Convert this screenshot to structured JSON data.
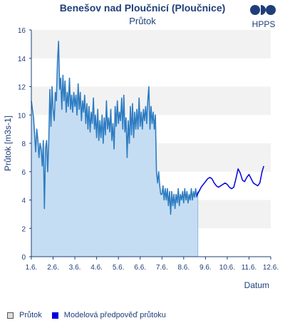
{
  "chart_data": {
    "type": "line",
    "title": "Benešov nad Ploučnicí (Ploučnice)",
    "subtitle": "Průtok",
    "xlabel": "Datum",
    "ylabel": "Průtok [m3s-1]",
    "ylim": [
      0,
      16
    ],
    "yticks": [
      0,
      2,
      4,
      6,
      8,
      10,
      12,
      14,
      16
    ],
    "xlim": [
      0,
      11
    ],
    "xticks": [
      {
        "x": 0,
        "label": "1.6."
      },
      {
        "x": 1,
        "label": "2.6."
      },
      {
        "x": 2,
        "label": "3.6."
      },
      {
        "x": 3,
        "label": "4.6."
      },
      {
        "x": 4,
        "label": "5.6."
      },
      {
        "x": 5,
        "label": "6.6."
      },
      {
        "x": 6,
        "label": "7.6."
      },
      {
        "x": 7,
        "label": "8.6."
      },
      {
        "x": 8,
        "label": "9.6."
      },
      {
        "x": 9,
        "label": "10.6."
      },
      {
        "x": 10,
        "label": "11.6."
      },
      {
        "x": 11,
        "label": "12.6."
      }
    ],
    "grid": "horizontal bands",
    "legend_position": "bottom-left",
    "series": [
      {
        "name": "Průtok",
        "color": "#2e7cc1",
        "fill": "#c5ddf3",
        "points": [
          [
            0.0,
            11.0
          ],
          [
            0.05,
            10.4
          ],
          [
            0.1,
            9.8
          ],
          [
            0.15,
            8.6
          ],
          [
            0.2,
            7.4
          ],
          [
            0.25,
            9.0
          ],
          [
            0.3,
            8.2
          ],
          [
            0.35,
            7.0
          ],
          [
            0.4,
            8.0
          ],
          [
            0.45,
            7.6
          ],
          [
            0.5,
            6.4
          ],
          [
            0.55,
            8.2
          ],
          [
            0.6,
            3.4
          ],
          [
            0.65,
            7.6
          ],
          [
            0.7,
            8.2
          ],
          [
            0.75,
            6.0
          ],
          [
            0.8,
            8.0
          ],
          [
            0.85,
            11.8
          ],
          [
            0.9,
            9.2
          ],
          [
            0.95,
            12.0
          ],
          [
            1.0,
            10.4
          ],
          [
            1.05,
            9.6
          ],
          [
            1.1,
            11.6
          ],
          [
            1.15,
            11.0
          ],
          [
            1.2,
            13.8
          ],
          [
            1.25,
            15.2
          ],
          [
            1.3,
            11.8
          ],
          [
            1.35,
            12.6
          ],
          [
            1.4,
            10.4
          ],
          [
            1.45,
            12.8
          ],
          [
            1.5,
            11.0
          ],
          [
            1.55,
            12.4
          ],
          [
            1.6,
            10.2
          ],
          [
            1.65,
            11.6
          ],
          [
            1.7,
            10.6
          ],
          [
            1.75,
            12.6
          ],
          [
            1.8,
            10.4
          ],
          [
            1.85,
            11.4
          ],
          [
            1.9,
            10.2
          ],
          [
            1.95,
            11.6
          ],
          [
            2.0,
            10.6
          ],
          [
            2.05,
            11.4
          ],
          [
            2.1,
            10.0
          ],
          [
            2.15,
            12.2
          ],
          [
            2.2,
            10.4
          ],
          [
            2.25,
            11.6
          ],
          [
            2.3,
            9.6
          ],
          [
            2.35,
            11.0
          ],
          [
            2.4,
            10.2
          ],
          [
            2.45,
            11.4
          ],
          [
            2.5,
            9.4
          ],
          [
            2.55,
            10.8
          ],
          [
            2.6,
            9.0
          ],
          [
            2.65,
            10.6
          ],
          [
            2.7,
            8.8
          ],
          [
            2.75,
            10.2
          ],
          [
            2.8,
            9.4
          ],
          [
            2.85,
            11.2
          ],
          [
            2.9,
            9.0
          ],
          [
            2.95,
            10.0
          ],
          [
            3.0,
            8.4
          ],
          [
            3.05,
            10.4
          ],
          [
            3.1,
            8.2
          ],
          [
            3.15,
            9.6
          ],
          [
            3.2,
            8.4
          ],
          [
            3.25,
            10.0
          ],
          [
            3.3,
            8.0
          ],
          [
            3.35,
            9.8
          ],
          [
            3.4,
            8.6
          ],
          [
            3.45,
            11.0
          ],
          [
            3.5,
            9.0
          ],
          [
            3.55,
            9.8
          ],
          [
            3.6,
            8.8
          ],
          [
            3.65,
            10.4
          ],
          [
            3.7,
            8.2
          ],
          [
            3.75,
            9.4
          ],
          [
            3.8,
            7.6
          ],
          [
            3.85,
            10.6
          ],
          [
            3.9,
            9.2
          ],
          [
            3.95,
            11.0
          ],
          [
            4.0,
            9.4
          ],
          [
            4.05,
            10.2
          ],
          [
            4.1,
            9.6
          ],
          [
            4.15,
            11.2
          ],
          [
            4.2,
            9.0
          ],
          [
            4.25,
            11.4
          ],
          [
            4.3,
            8.8
          ],
          [
            4.35,
            9.8
          ],
          [
            4.4,
            7.0
          ],
          [
            4.45,
            9.6
          ],
          [
            4.5,
            8.0
          ],
          [
            4.55,
            10.6
          ],
          [
            4.6,
            8.6
          ],
          [
            4.65,
            10.8
          ],
          [
            4.7,
            8.4
          ],
          [
            4.75,
            10.2
          ],
          [
            4.8,
            9.0
          ],
          [
            4.85,
            10.4
          ],
          [
            4.9,
            9.0
          ],
          [
            4.95,
            11.2
          ],
          [
            5.0,
            9.2
          ],
          [
            5.05,
            10.2
          ],
          [
            5.1,
            9.0
          ],
          [
            5.15,
            10.4
          ],
          [
            5.2,
            9.6
          ],
          [
            5.25,
            10.6
          ],
          [
            5.3,
            9.4
          ],
          [
            5.35,
            11.0
          ],
          [
            5.4,
            12.0
          ],
          [
            5.45,
            9.0
          ],
          [
            5.5,
            10.6
          ],
          [
            5.55,
            9.4
          ],
          [
            5.6,
            10.2
          ],
          [
            5.65,
            9.0
          ],
          [
            5.7,
            10.0
          ],
          [
            5.75,
            6.0
          ],
          [
            5.8,
            5.2
          ],
          [
            5.85,
            6.0
          ],
          [
            5.9,
            5.0
          ],
          [
            5.95,
            4.4
          ],
          [
            6.0,
            4.4
          ],
          [
            6.05,
            5.0
          ],
          [
            6.1,
            4.0
          ],
          [
            6.15,
            4.8
          ],
          [
            6.2,
            4.0
          ],
          [
            6.25,
            4.8
          ],
          [
            6.3,
            3.6
          ],
          [
            6.35,
            4.6
          ],
          [
            6.4,
            3.0
          ],
          [
            6.45,
            4.6
          ],
          [
            6.5,
            3.6
          ],
          [
            6.55,
            4.4
          ],
          [
            6.6,
            3.4
          ],
          [
            6.65,
            4.4
          ],
          [
            6.7,
            3.8
          ],
          [
            6.75,
            4.8
          ],
          [
            6.8,
            3.6
          ],
          [
            6.85,
            4.4
          ],
          [
            6.9,
            4.0
          ],
          [
            6.95,
            4.6
          ],
          [
            7.0,
            3.8
          ],
          [
            7.05,
            4.8
          ],
          [
            7.1,
            4.0
          ],
          [
            7.15,
            4.6
          ],
          [
            7.2,
            3.8
          ],
          [
            7.25,
            4.4
          ],
          [
            7.3,
            4.0
          ],
          [
            7.35,
            4.8
          ],
          [
            7.4,
            4.0
          ],
          [
            7.45,
            4.6
          ],
          [
            7.5,
            4.2
          ],
          [
            7.55,
            4.8
          ],
          [
            7.6,
            4.2
          ],
          [
            7.65,
            4.6
          ]
        ]
      },
      {
        "name": "Modelová předpověď průtoku",
        "color": "#0000dd",
        "points": [
          [
            7.6,
            4.3
          ],
          [
            7.7,
            4.6
          ],
          [
            7.8,
            4.9
          ],
          [
            7.9,
            5.1
          ],
          [
            8.0,
            5.3
          ],
          [
            8.1,
            5.5
          ],
          [
            8.2,
            5.6
          ],
          [
            8.3,
            5.5
          ],
          [
            8.4,
            5.2
          ],
          [
            8.5,
            5.0
          ],
          [
            8.6,
            4.9
          ],
          [
            8.7,
            5.0
          ],
          [
            8.8,
            5.1
          ],
          [
            8.9,
            5.2
          ],
          [
            9.0,
            5.1
          ],
          [
            9.1,
            4.9
          ],
          [
            9.2,
            4.8
          ],
          [
            9.3,
            4.9
          ],
          [
            9.4,
            5.5
          ],
          [
            9.5,
            6.2
          ],
          [
            9.6,
            5.9
          ],
          [
            9.7,
            5.4
          ],
          [
            9.8,
            5.3
          ],
          [
            9.9,
            5.6
          ],
          [
            10.0,
            5.8
          ],
          [
            10.1,
            5.5
          ],
          [
            10.2,
            5.2
          ],
          [
            10.3,
            5.1
          ],
          [
            10.4,
            5.0
          ],
          [
            10.5,
            5.2
          ],
          [
            10.6,
            6.0
          ],
          [
            10.68,
            6.4
          ]
        ]
      }
    ]
  },
  "logo": {
    "text": "HPPS",
    "colors": [
      "#1f3f7a",
      "#1f3f7a"
    ]
  },
  "legend": [
    {
      "label": "Průtok"
    },
    {
      "label": "Modelová předpověď průtoku"
    }
  ]
}
